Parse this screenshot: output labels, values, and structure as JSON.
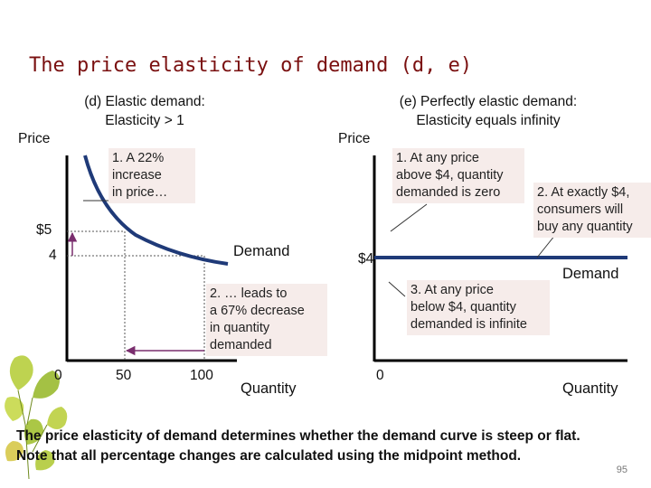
{
  "slide": {
    "title": "The price elasticity of demand (d, e)",
    "page_number": "95",
    "footer_line1": "The price elasticity of demand determines whether the demand curve is steep or flat.",
    "footer_line2": "Note that all percentage changes are calculated using the midpoint method."
  },
  "panel_d": {
    "title_line1": "(d) Elastic demand:",
    "title_line2": "Elasticity > 1",
    "y_axis_label": "Price",
    "x_axis_label": "Quantity",
    "y_ticks": [
      "$5",
      "4"
    ],
    "x_ticks": [
      "0",
      "50",
      "100"
    ],
    "curve_label": "Demand",
    "note1_lines": [
      "1.  A 22%",
      "increase",
      "in price…"
    ],
    "note2_lines": [
      "2. … leads to",
      "a 67% decrease",
      "in quantity",
      "demanded"
    ]
  },
  "panel_e": {
    "title_line1": "(e) Perfectly elastic demand:",
    "title_line2": "Elasticity equals infinity",
    "y_axis_label": "Price",
    "x_axis_label": "Quantity",
    "price_label": "$4",
    "origin_label": "0",
    "curve_label": "Demand",
    "note1_lines": [
      "1. At any price",
      "above $4, quantity",
      "demanded is zero"
    ],
    "note2_lines": [
      "2. At exactly $4,",
      "consumers will",
      "buy any quantity"
    ],
    "note3_lines": [
      "3. At any price",
      "below $4, quantity",
      "demanded is infinite"
    ]
  },
  "chart_data": [
    {
      "type": "line",
      "title": "(d) Elastic demand: Elasticity > 1",
      "xlabel": "Quantity",
      "ylabel": "Price",
      "series": [
        {
          "name": "Demand",
          "x": [
            50,
            100
          ],
          "y": [
            5,
            4
          ]
        }
      ]
    },
    {
      "type": "line",
      "title": "(e) Perfectly elastic demand: Elasticity equals infinity",
      "xlabel": "Quantity",
      "ylabel": "Price",
      "series": [
        {
          "name": "Demand",
          "y_constant": 4
        }
      ]
    }
  ],
  "colors": {
    "title": "#7a1010",
    "demand_curve": "#1f3a78",
    "axis": "#000000",
    "arrow": "#7a2e6e",
    "callout_box": "#f6ecea"
  },
  "decoration": {
    "icon": "ginkgo-leaves-icon"
  }
}
